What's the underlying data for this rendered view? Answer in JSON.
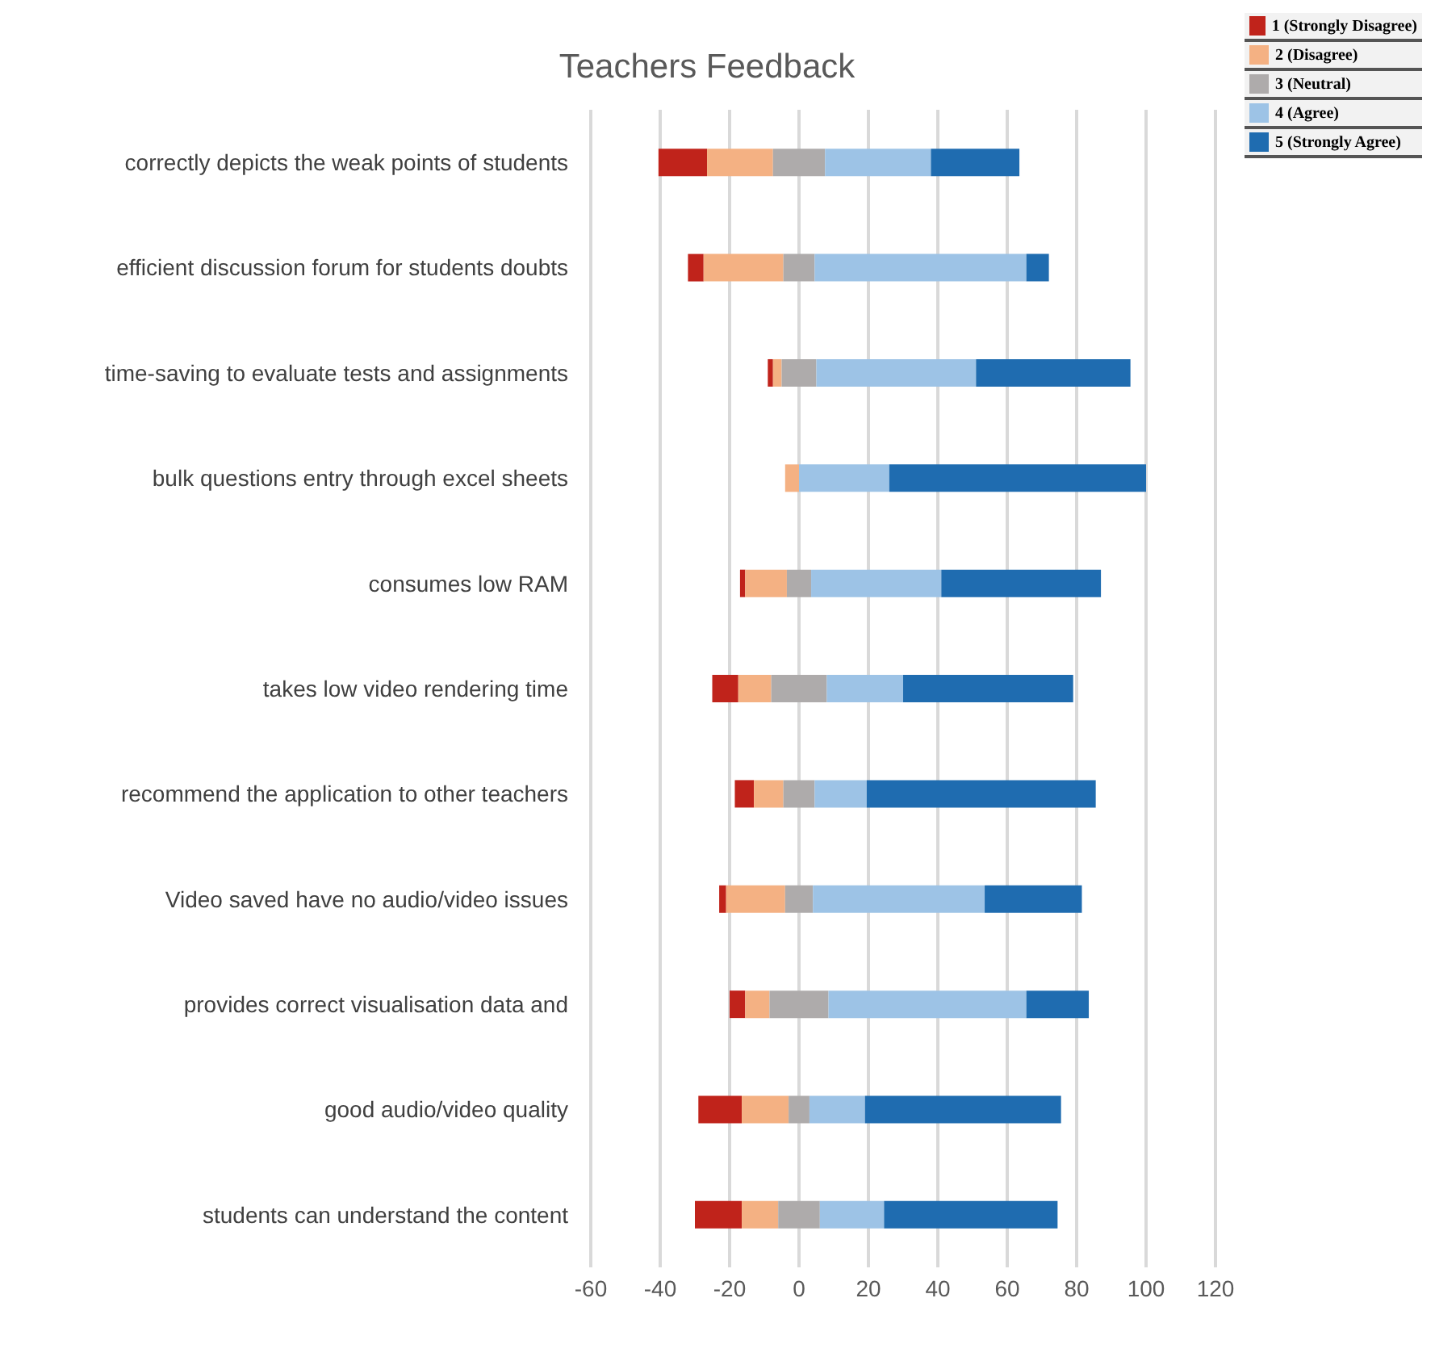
{
  "chart_data": {
    "type": "bar",
    "orientation": "horizontal",
    "title": "Teachers Feedback",
    "categories": [
      "correctly depicts the weak points of students",
      "efficient discussion forum for students doubts",
      "time-saving to evaluate tests and assignments",
      "bulk questions entry through excel sheets",
      "consumes low RAM",
      "takes low video rendering time",
      "recommend the application to other teachers",
      "Video saved have no audio/video issues",
      "provides correct visualisation data and",
      "good audio/video quality",
      "students can understand the content"
    ],
    "series": [
      {
        "name": "1 (Strongly Disagree)",
        "color": "#c0231b",
        "base": [
          -40.5,
          -32,
          -9,
          null,
          -17,
          -25,
          -18.5,
          -23,
          -20,
          -29,
          -30
        ],
        "values": [
          14,
          4.5,
          1.5,
          null,
          1.5,
          7.5,
          5.5,
          2,
          4.5,
          12.5,
          13.5
        ]
      },
      {
        "name": "2 (Disagree)",
        "color": "#f4b183",
        "base": [
          -26.5,
          -27.5,
          -7.5,
          -4,
          -15.5,
          -17.5,
          -13,
          -21,
          -15.5,
          -16.5,
          -16.5
        ],
        "values": [
          19,
          23,
          2.5,
          4,
          12,
          9.5,
          8.5,
          17,
          7,
          13.5,
          10.5
        ]
      },
      {
        "name": "3 (Neutral)",
        "color": "#aeabab",
        "base": [
          -7.5,
          -4.5,
          -5,
          null,
          -3.5,
          -8,
          -4.5,
          -4,
          -8.5,
          -3,
          -6
        ],
        "values": [
          15,
          9,
          10,
          null,
          7,
          16,
          9,
          8,
          17,
          6,
          12
        ]
      },
      {
        "name": "4 (Agree)",
        "color": "#9dc3e6",
        "base": [
          7.5,
          4.5,
          5,
          0,
          3.5,
          8,
          4.5,
          4,
          8.5,
          3,
          6
        ],
        "values": [
          30.5,
          61,
          46,
          26,
          37.5,
          22,
          15,
          49.5,
          57,
          16,
          18.5
        ]
      },
      {
        "name": "5 (Strongly Agree)",
        "color": "#1f6cb0",
        "base": [
          38,
          65.5,
          51,
          26,
          41,
          30,
          19.5,
          53.5,
          65.5,
          19,
          24.5
        ],
        "values": [
          25.5,
          6.5,
          44.5,
          74,
          46,
          49,
          66,
          28,
          18,
          56.5,
          50
        ]
      }
    ],
    "xlim": [
      -60,
      120
    ],
    "xticks": [
      -60,
      -40,
      -20,
      0,
      20,
      40,
      60,
      80,
      100,
      120
    ],
    "grid": "x",
    "legend": "top right"
  }
}
